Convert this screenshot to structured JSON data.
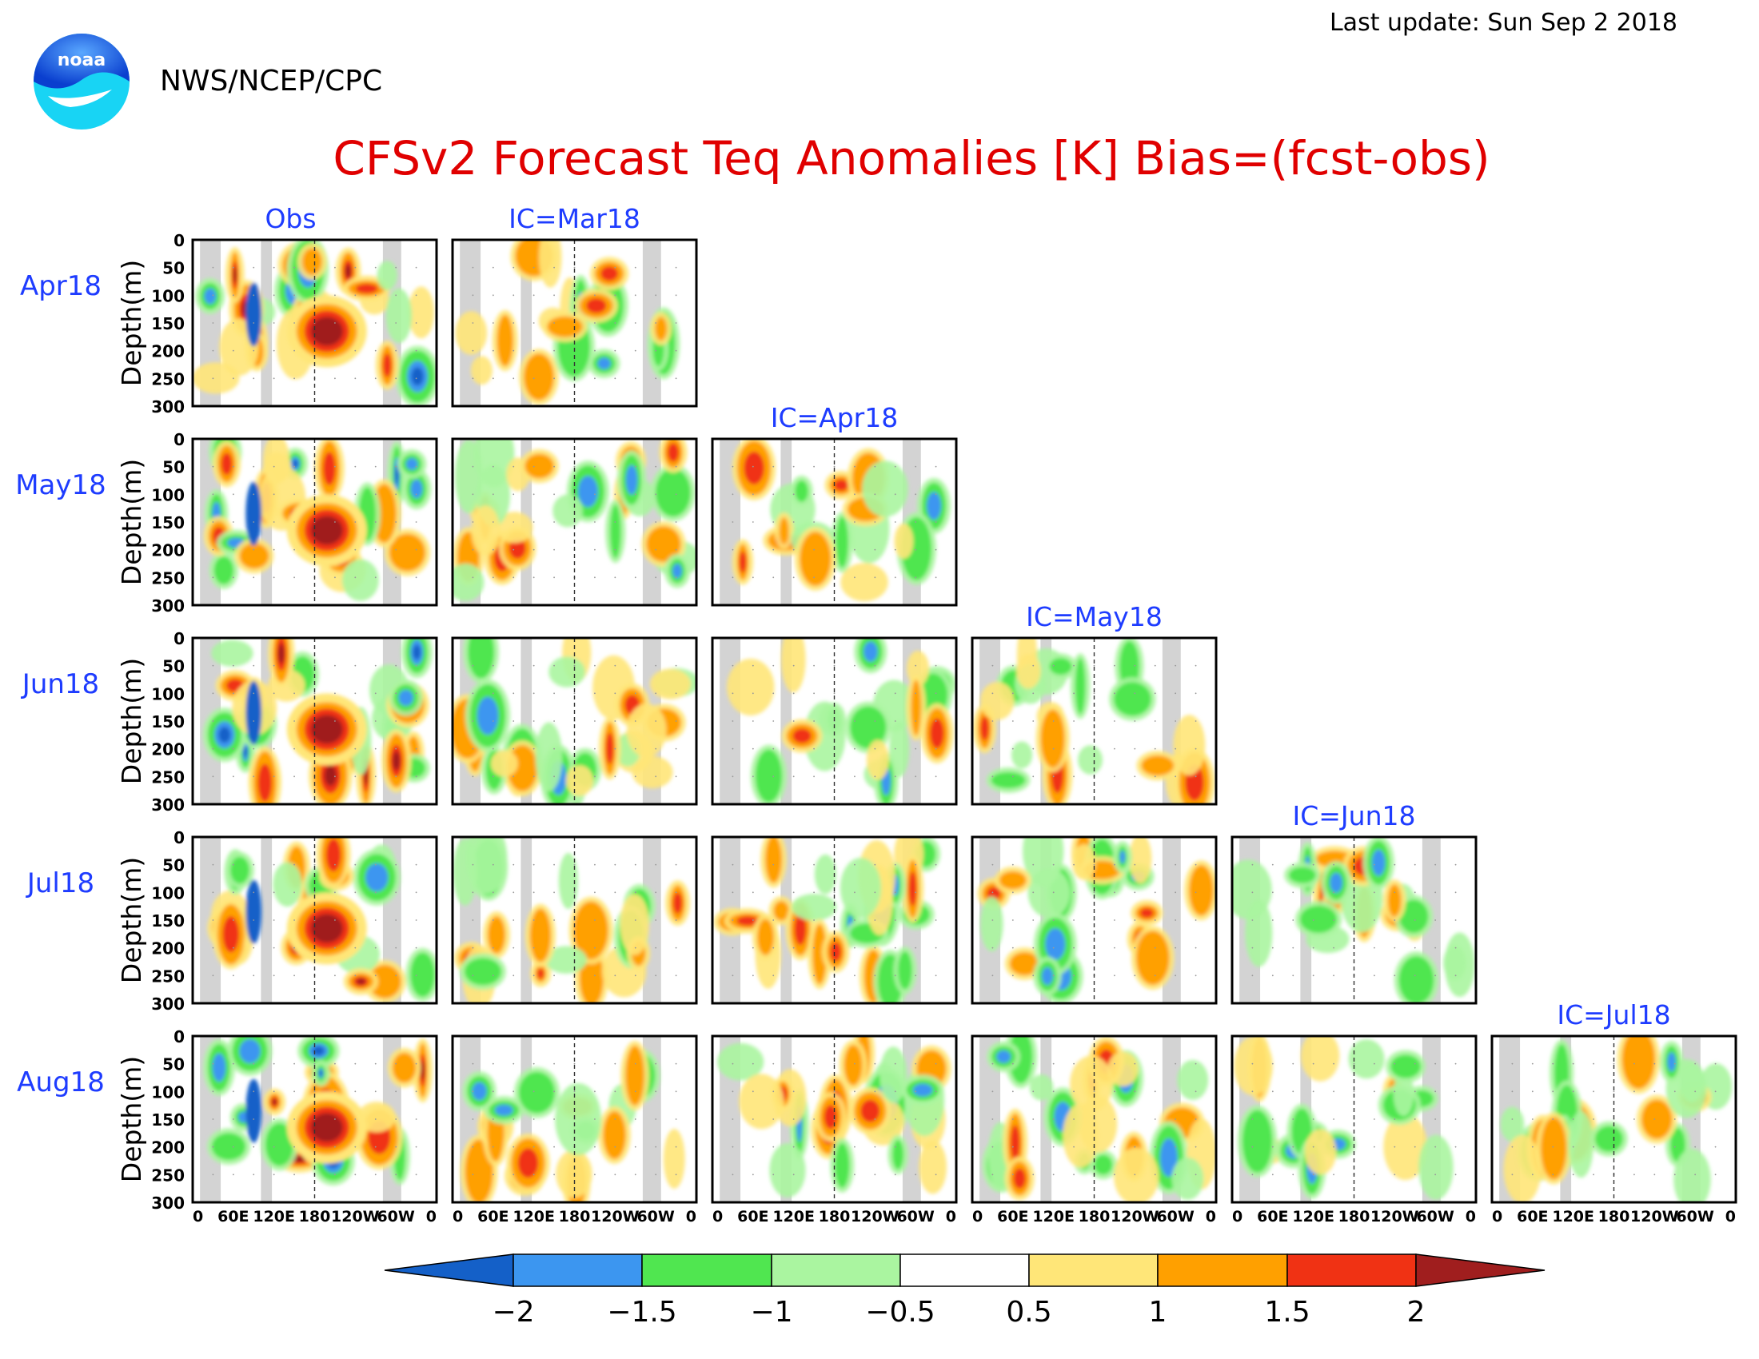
{
  "header": {
    "last_update": "Last update: Sun Sep 2 2018",
    "agency": "NWS/NCEP/CPC",
    "logo_text": "noaa"
  },
  "chart_data": {
    "type": "heatmap",
    "title": "CFSv2 Forecast Teq Anomalies [K] Bias=(fcst-obs)",
    "ylabel": "Depth(m)",
    "ylim": [
      300,
      0
    ],
    "y_ticks": [
      "0",
      "50",
      "100",
      "150",
      "200",
      "250",
      "300"
    ],
    "x_ticks": [
      "0",
      "60E",
      "120E",
      "180",
      "120W",
      "60W",
      "0"
    ],
    "row_labels": [
      "Apr18",
      "May18",
      "Jun18",
      "Jul18",
      "Aug18"
    ],
    "column_labels": [
      "Obs",
      "IC=Mar18",
      "IC=Apr18",
      "IC=May18",
      "IC=Jun18",
      "IC=Jul18"
    ],
    "colorbar": {
      "tick_labels": [
        "−2",
        "−1.5",
        "−1",
        "−0.5",
        "0.5",
        "1",
        "1.5",
        "2"
      ],
      "colors": [
        "#1460c8",
        "#3c96f0",
        "#50e650",
        "#aaf5a0",
        "#ffffff",
        "#ffe678",
        "#ffa000",
        "#f03214",
        "#a01e1e"
      ]
    },
    "colors": {
      "title": "#e00000",
      "labels": "#1e3cff",
      "land_mask": "#d3d3d3"
    }
  }
}
